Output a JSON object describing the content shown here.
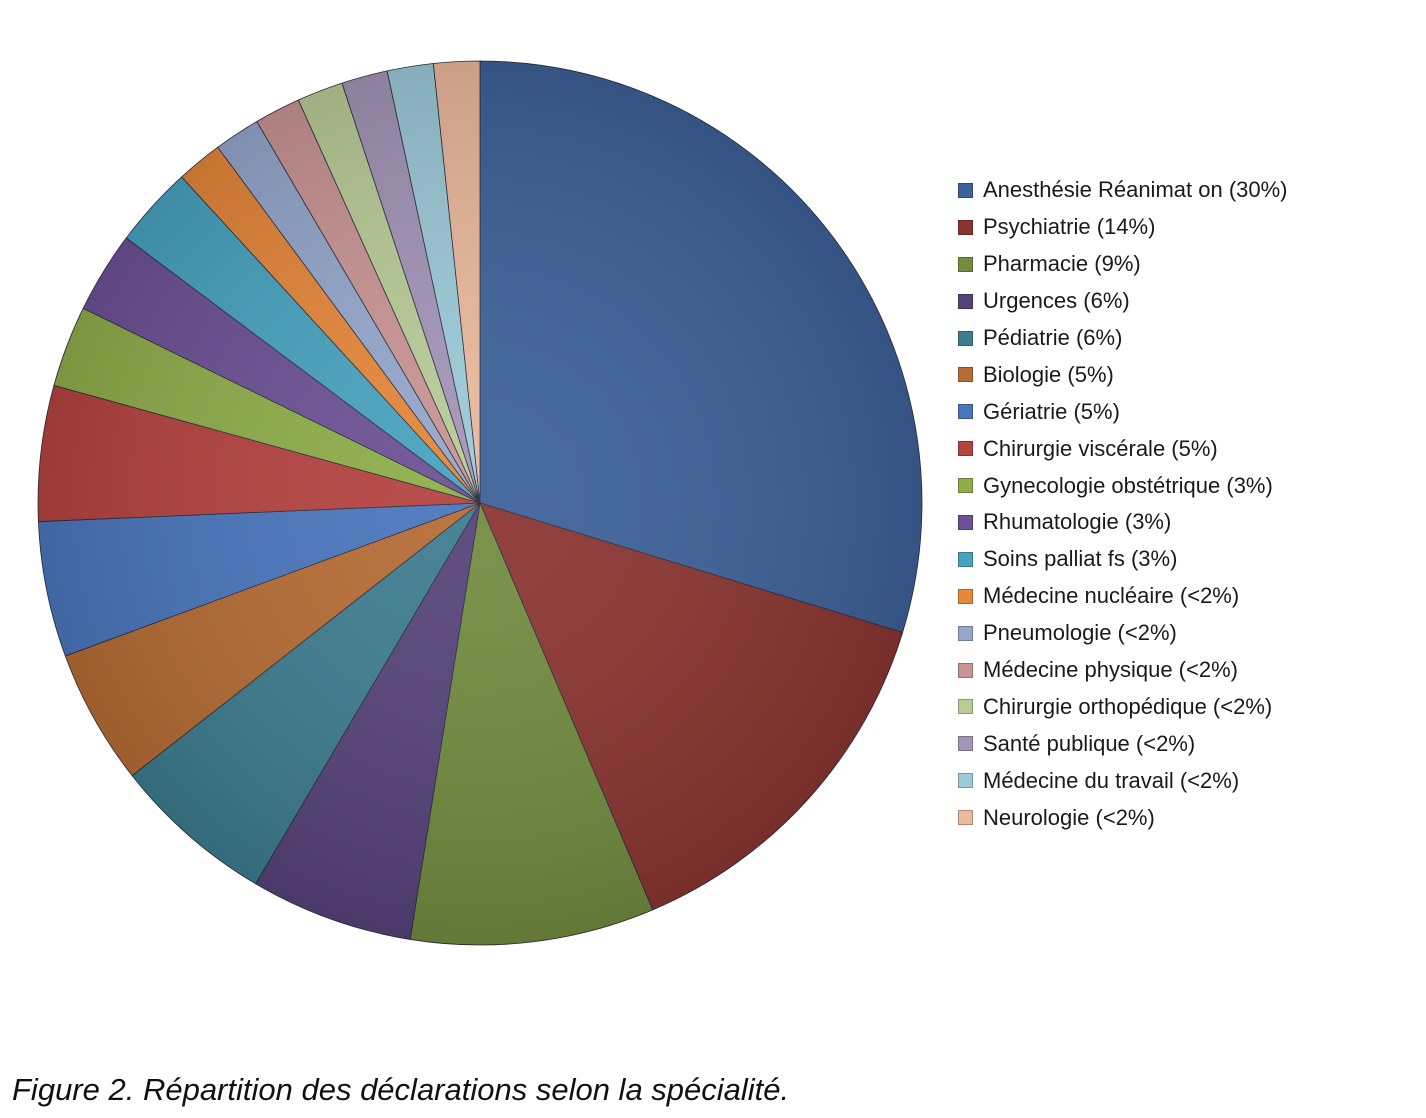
{
  "chart_data": {
    "type": "pie",
    "start_angle_deg": 0,
    "direction": "clockwise",
    "legend_position": "right",
    "slices": [
      {
        "label": "Anesthésie Réanimat on (30%)",
        "value": 30,
        "color": "#3d6199"
      },
      {
        "label": "Psychiatrie (14%)",
        "value": 14,
        "color": "#8b3531"
      },
      {
        "label": "Pharmacie (9%)",
        "value": 9,
        "color": "#728c40"
      },
      {
        "label": "Urgences (6%)",
        "value": 6,
        "color": "#56437a"
      },
      {
        "label": "Pédiatrie (6%)",
        "value": 6,
        "color": "#3d7d90"
      },
      {
        "label": "Biologie (5%)",
        "value": 5,
        "color": "#b66c34"
      },
      {
        "label": "Gériatrie (5%)",
        "value": 5,
        "color": "#4a76bd"
      },
      {
        "label": "Chirurgie viscérale (5%)",
        "value": 5,
        "color": "#b54340"
      },
      {
        "label": "Gynecologie obstétrique (3%)",
        "value": 3,
        "color": "#8fae4a"
      },
      {
        "label": "Rhumatologie (3%)",
        "value": 3,
        "color": "#6c5196"
      },
      {
        "label": "Soins palliat fs (3%)",
        "value": 3,
        "color": "#48a3c0"
      },
      {
        "label": "Médecine nucléaire (<2%)",
        "value": 1.7,
        "color": "#e6873a"
      },
      {
        "label": "Pneumologie (<2%)",
        "value": 1.7,
        "color": "#95a7cc"
      },
      {
        "label": "Médecine physique (<2%)",
        "value": 1.7,
        "color": "#c99594"
      },
      {
        "label": "Chirurgie orthopédique (<2%)",
        "value": 1.7,
        "color": "#b9cc97"
      },
      {
        "label": "Santé publique (<2%)",
        "value": 1.7,
        "color": "#a495b8"
      },
      {
        "label": "Médecine du travail (<2%)",
        "value": 1.7,
        "color": "#9ccad8"
      },
      {
        "label": "Neurologie (<2%)",
        "value": 1.7,
        "color": "#ebb99c"
      }
    ]
  },
  "caption": "Figure 2. Répartition des déclarations selon la spécialité."
}
